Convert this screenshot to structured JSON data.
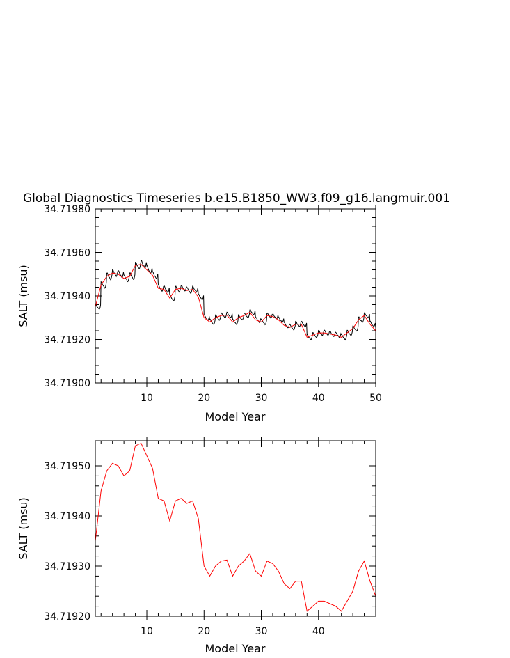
{
  "title": "Global Diagnostics Timeseries b.e15.B1850_WW3.f09_g16.langmuir.001",
  "colors": {
    "monthly": "#000000",
    "annual": "#ff0000",
    "axis": "#000000"
  },
  "chart_data": [
    {
      "type": "line",
      "xlabel": "Model Year",
      "ylabel": "SALT (msu)",
      "xlim": [
        1,
        50
      ],
      "ylim": [
        34.719,
        34.7198
      ],
      "xticks": [
        "10",
        "20",
        "30",
        "40",
        "50"
      ],
      "yticks": [
        "34.71900",
        "34.71920",
        "34.71940",
        "34.71960",
        "34.71980"
      ],
      "grid": false,
      "series": [
        {
          "color": "#000000",
          "resolution": "monthly",
          "year_start": 1,
          "seasonal_amplitude": [
            1e-05,
            1.2e-05,
            1.3e-05,
            1.3e-05,
            1.3e-05,
            1.2e-05,
            1.3e-05,
            1.3e-05,
            1.4e-05,
            1.4e-05,
            1.3e-05,
            1.2e-05,
            1.2e-05,
            1.2e-05,
            1.1e-05,
            1.1e-05,
            1.1e-05,
            1.1e-05,
            1.1e-05,
            1.1e-05,
            1e-05,
            1e-05,
            1e-05,
            1e-05,
            1e-05,
            1e-05,
            1e-05,
            1e-05,
            1e-05,
            1e-05,
            1e-05,
            1e-05,
            1e-05,
            1e-05,
            1e-05,
            1e-05,
            1e-05,
            1e-05,
            1e-05,
            1e-05,
            1e-05,
            1e-05,
            1e-05,
            1e-05,
            1e-05,
            1e-05,
            1e-05,
            1e-05,
            1e-05,
            1e-05
          ]
        },
        {
          "color": "#ff0000",
          "resolution": "annual",
          "x": [
            1,
            2,
            3,
            4,
            5,
            6,
            7,
            8,
            9,
            10,
            11,
            12,
            13,
            14,
            15,
            16,
            17,
            18,
            19,
            20,
            21,
            22,
            23,
            24,
            25,
            26,
            27,
            28,
            29,
            30,
            31,
            32,
            33,
            34,
            35,
            36,
            37,
            38,
            39,
            40,
            41,
            42,
            43,
            44,
            45,
            46,
            47,
            48,
            49,
            50
          ],
          "values": [
            34.71935,
            34.71945,
            34.71949,
            34.719505,
            34.7195,
            34.71948,
            34.71949,
            34.71954,
            34.719545,
            34.71952,
            34.719495,
            34.719435,
            34.71943,
            34.71939,
            34.71943,
            34.719435,
            34.719425,
            34.71943,
            34.719395,
            34.7193,
            34.71928,
            34.7193,
            34.71931,
            34.719312,
            34.71928,
            34.7193,
            34.71931,
            34.719325,
            34.71929,
            34.71928,
            34.71931,
            34.719305,
            34.71929,
            34.719265,
            34.719255,
            34.71927,
            34.71927,
            34.71921,
            34.71922,
            34.71923,
            34.71923,
            34.719225,
            34.71922,
            34.71921,
            34.71923,
            34.71925,
            34.71929,
            34.71931,
            34.71927,
            34.71924
          ]
        }
      ]
    },
    {
      "type": "line",
      "xlabel": "Model Year",
      "ylabel": "SALT (msu)",
      "xlim": [
        1,
        50
      ],
      "ylim": [
        34.7192,
        34.71955
      ],
      "xticks": [
        "10",
        "20",
        "30",
        "40"
      ],
      "yticks": [
        "34.71920",
        "34.71930",
        "34.71940",
        "34.71950"
      ],
      "grid": false,
      "series": [
        {
          "color": "#ff0000",
          "resolution": "annual",
          "x": [
            1,
            2,
            3,
            4,
            5,
            6,
            7,
            8,
            9,
            10,
            11,
            12,
            13,
            14,
            15,
            16,
            17,
            18,
            19,
            20,
            21,
            22,
            23,
            24,
            25,
            26,
            27,
            28,
            29,
            30,
            31,
            32,
            33,
            34,
            35,
            36,
            37,
            38,
            39,
            40,
            41,
            42,
            43,
            44,
            45,
            46,
            47,
            48,
            49,
            50
          ],
          "values": [
            34.71935,
            34.71945,
            34.71949,
            34.719505,
            34.7195,
            34.71948,
            34.71949,
            34.71954,
            34.719545,
            34.71952,
            34.719495,
            34.719435,
            34.71943,
            34.71939,
            34.71943,
            34.719435,
            34.719425,
            34.71943,
            34.719395,
            34.7193,
            34.71928,
            34.7193,
            34.71931,
            34.719312,
            34.71928,
            34.7193,
            34.71931,
            34.719325,
            34.71929,
            34.71928,
            34.71931,
            34.719305,
            34.71929,
            34.719265,
            34.719255,
            34.71927,
            34.71927,
            34.71921,
            34.71922,
            34.71923,
            34.71923,
            34.719225,
            34.71922,
            34.71921,
            34.71923,
            34.71925,
            34.71929,
            34.71931,
            34.71927,
            34.71924
          ]
        }
      ]
    }
  ]
}
